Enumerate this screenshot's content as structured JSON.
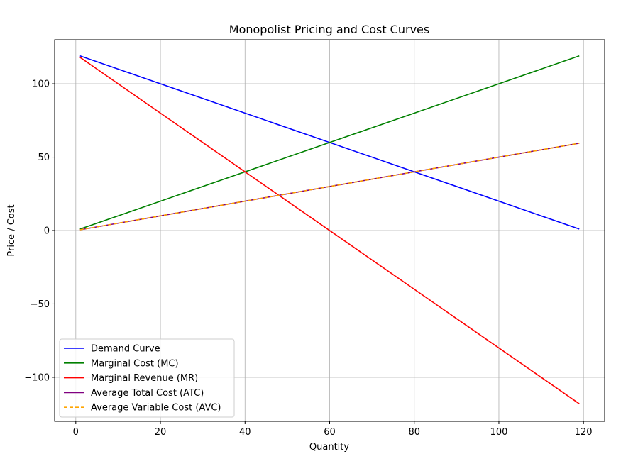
{
  "chart_data": {
    "type": "line",
    "title": "Monopolist Pricing and Cost Curves",
    "xlabel": "Quantity",
    "ylabel": "Price / Cost",
    "xlim": [
      -5,
      125
    ],
    "ylim": [
      -130,
      130
    ],
    "xticks": [
      0,
      20,
      40,
      60,
      80,
      100,
      120
    ],
    "yticks": [
      -100,
      -50,
      0,
      50,
      100
    ],
    "ytick_labels": [
      "−100",
      "−50",
      "0",
      "50",
      "100"
    ],
    "grid": true,
    "legend_position": "lower-left",
    "series": [
      {
        "name": "Demand Curve",
        "color": "#0000ff",
        "dash": false,
        "x": [
          1,
          119
        ],
        "y": [
          119,
          1
        ]
      },
      {
        "name": "Marginal Cost (MC)",
        "color": "#008000",
        "dash": false,
        "x": [
          1,
          119
        ],
        "y": [
          1,
          119
        ]
      },
      {
        "name": "Marginal Revenue (MR)",
        "color": "#ff0000",
        "dash": false,
        "x": [
          1,
          119
        ],
        "y": [
          118,
          -118
        ]
      },
      {
        "name": "Average Total Cost (ATC)",
        "color": "#800080",
        "dash": false,
        "x": [
          1,
          119
        ],
        "y": [
          0.5,
          59.5
        ]
      },
      {
        "name": "Average Variable Cost (AVC)",
        "color": "#ffa500",
        "dash": true,
        "x": [
          1,
          119
        ],
        "y": [
          0.5,
          59.5
        ]
      }
    ]
  }
}
